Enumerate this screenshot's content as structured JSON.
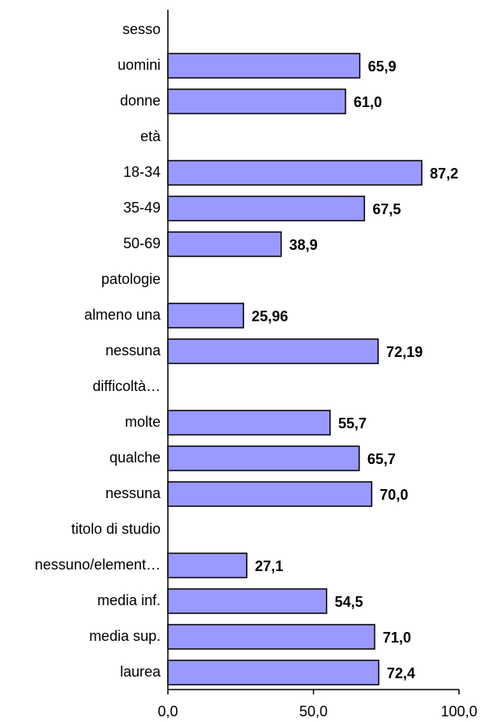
{
  "chart_data": {
    "type": "bar",
    "orientation": "horizontal",
    "categories": [
      "sesso",
      "uomini",
      "donne",
      "età",
      "18-34",
      "35-49",
      "50-69",
      "patologie",
      "almeno una",
      "nessuna",
      "difficoltà…",
      "molte",
      "qualche",
      "nessuna",
      "titolo di studio",
      "nessuno/element…",
      "media inf.",
      "media sup.",
      "laurea"
    ],
    "values": [
      null,
      65.9,
      61.0,
      null,
      87.2,
      67.5,
      38.9,
      null,
      25.96,
      72.19,
      null,
      55.7,
      65.7,
      70.0,
      null,
      27.1,
      54.5,
      71.0,
      72.4
    ],
    "value_labels": [
      null,
      "65,9",
      "61,0",
      null,
      "87,2",
      "67,5",
      "38,9",
      null,
      "25,96",
      "72,19",
      null,
      "55,7",
      "65,7",
      "70,0",
      null,
      "27,1",
      "54,5",
      "71,0",
      "72,4"
    ],
    "color": "#9999ff",
    "xlim": [
      0,
      100
    ],
    "xticks": [
      {
        "value": 0,
        "label": "0,0"
      },
      {
        "value": 50,
        "label": "50,0"
      },
      {
        "value": 100,
        "label": "100,0"
      }
    ],
    "grid": false
  }
}
